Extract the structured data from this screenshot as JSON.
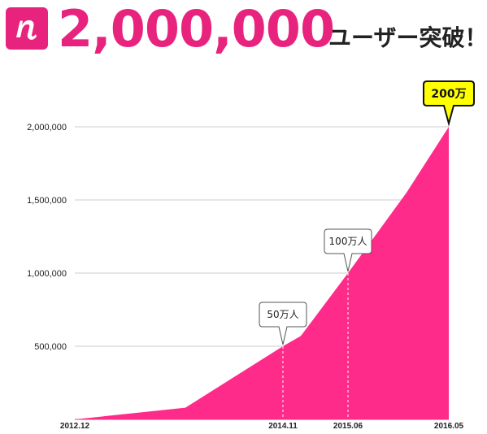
{
  "header": {
    "logo_icon": "n-logo-icon",
    "count": "2,000,000",
    "suffix": "ユーザー突破！"
  },
  "colors": {
    "accent": "#ff2b8a",
    "brand": "#e8237e",
    "badge": "#ffff00",
    "grid": "#cccccc"
  },
  "chart_data": {
    "type": "area",
    "x": [
      "2012.12",
      "2013.09",
      "2014.11",
      "2014.12",
      "2015.06",
      "2015.12",
      "2016.05"
    ],
    "y": [
      0,
      80000,
      500000,
      570000,
      1000000,
      1550000,
      2000000
    ],
    "xticks": [
      "2012.12",
      "2014.11",
      "2015.06",
      "2016.05"
    ],
    "yticks": [
      "500,000",
      "1,000,000",
      "1,500,000",
      "2,000,000"
    ],
    "ylim": [
      0,
      2000000
    ],
    "grid": true,
    "annotations": [
      {
        "label": "50万人",
        "x": "2014.11",
        "y": 500000,
        "style": "callout"
      },
      {
        "label": "100万人",
        "x": "2015.06",
        "y": 1000000,
        "style": "callout"
      },
      {
        "label": "200万",
        "x": "2016.05",
        "y": 2000000,
        "style": "badge"
      }
    ]
  }
}
